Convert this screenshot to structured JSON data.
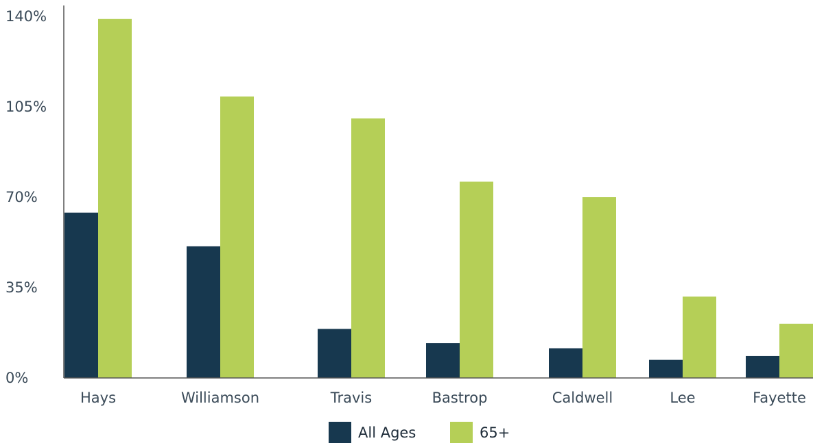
{
  "chart_data": {
    "type": "bar",
    "categories": [
      "Hays",
      "Williamson",
      "Travis",
      "Bastrop",
      "Caldwell",
      "Lee",
      "Fayette"
    ],
    "series": [
      {
        "name": "All Ages",
        "color": "#17384f",
        "values": [
          64,
          51,
          19,
          13.5,
          11.5,
          7,
          8.5
        ]
      },
      {
        "name": "65+",
        "color": "#b5cf57",
        "values": [
          139,
          109,
          100.5,
          76,
          70,
          31.5,
          21
        ]
      }
    ],
    "yticks": [
      "0%",
      "35%",
      "70%",
      "105%",
      "140%"
    ],
    "ylim": [
      0,
      140
    ],
    "legend_position": "bottom",
    "grid": false
  }
}
